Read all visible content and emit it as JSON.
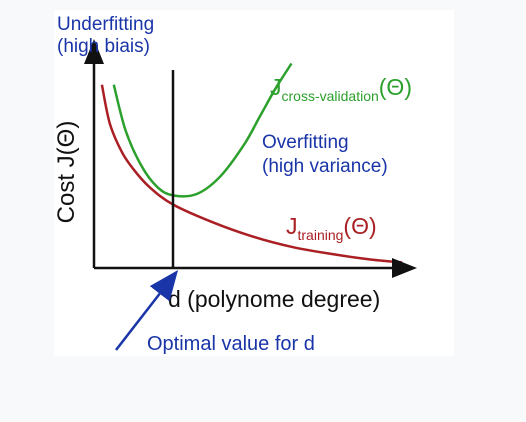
{
  "chart_data": {
    "type": "line",
    "xlabel": "d (polynome degree)",
    "ylabel": "Cost J(Θ)",
    "grid": false,
    "annotations": {
      "underfitting": [
        "Underfitting",
        "(high biais)"
      ],
      "overfitting": [
        "Overfitting",
        "(high variance)"
      ],
      "optimal": "Optimal value for d"
    },
    "series": [
      {
        "name_main": "J",
        "name_sub": "training",
        "name_suffix": "(Θ)",
        "color": "#aa1f23",
        "x": [
          0.1,
          0.2,
          0.35,
          0.5,
          0.7,
          1.0,
          1.5,
          2.0,
          2.5,
          3.0,
          3.5,
          3.9
        ],
        "y": [
          2.6,
          2.05,
          1.65,
          1.4,
          1.15,
          0.9,
          0.65,
          0.45,
          0.3,
          0.2,
          0.12,
          0.08
        ]
      },
      {
        "name_main": "J",
        "name_sub": "cross-validation",
        "name_suffix": "(Θ)",
        "color": "#2ca02c",
        "x": [
          0.25,
          0.4,
          0.6,
          0.8,
          1.0,
          1.3,
          1.6,
          1.9,
          2.1,
          2.3,
          2.5
        ],
        "y": [
          2.6,
          1.95,
          1.45,
          1.15,
          1.03,
          1.05,
          1.3,
          1.75,
          2.15,
          2.55,
          2.9
        ]
      }
    ],
    "optimal_x": 1.0,
    "xlim": [
      0,
      4.0
    ],
    "ylim": [
      0,
      2.95
    ]
  },
  "colors": {
    "axes": "#111111",
    "annotation_blue": "#1a35a8"
  }
}
